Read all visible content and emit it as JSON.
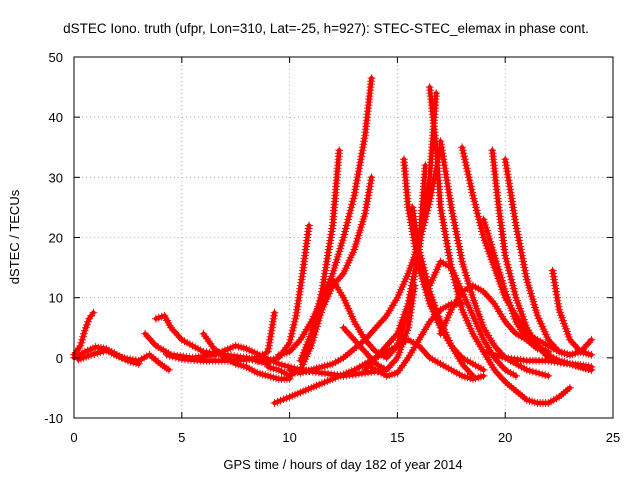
{
  "chart_data": {
    "type": "scatter",
    "title": "dSTEC Iono. truth (ufpr, Lon=310, Lat=-25, h=927): STEC-STEC_elemax in phase cont.",
    "xlabel": "GPS time / hours of day 182 of year 2014",
    "ylabel": "dSTEC  / TECUs",
    "xlim": [
      0,
      25
    ],
    "ylim": [
      -10,
      50
    ],
    "xticks": [
      0,
      5,
      10,
      15,
      20,
      25
    ],
    "yticks": [
      -10,
      0,
      10,
      20,
      30,
      40,
      50
    ],
    "grid": true,
    "marker": "+",
    "color": "#ff0000",
    "series": [
      {
        "x": [
          0.0,
          0.3,
          0.5,
          0.7,
          0.9
        ],
        "y": [
          0.5,
          2.0,
          4.5,
          6.5,
          7.5
        ]
      },
      {
        "x": [
          0.0,
          0.5,
          1.0,
          1.5,
          2.0,
          2.5,
          3.0
        ],
        "y": [
          0.0,
          1.0,
          1.8,
          1.5,
          0.5,
          -0.5,
          -1.0
        ]
      },
      {
        "x": [
          0.2,
          0.8,
          1.5,
          2.2,
          3.0,
          3.5,
          4.0,
          4.4
        ],
        "y": [
          -0.3,
          0.5,
          1.2,
          0.0,
          -0.5,
          0.5,
          -1.0,
          -2.0
        ]
      },
      {
        "x": [
          3.8,
          4.2,
          4.5,
          5.0,
          6.0,
          7.0,
          8.0,
          9.0
        ],
        "y": [
          6.5,
          7.0,
          5.0,
          3.0,
          1.0,
          0.5,
          0.0,
          -1.0
        ]
      },
      {
        "x": [
          3.3,
          3.8,
          4.5,
          5.5,
          6.5,
          7.5,
          8.0,
          9.5,
          10.5,
          11.5,
          12.5,
          13.5,
          14.5
        ],
        "y": [
          4.0,
          2.0,
          0.5,
          0.0,
          0.5,
          2.0,
          1.5,
          -1.0,
          -2.0,
          -2.5,
          -3.0,
          -2.5,
          -2.0
        ]
      },
      {
        "x": [
          6.0,
          6.5,
          7.0,
          7.5,
          8.0,
          8.5,
          9.0,
          9.5,
          10.0
        ],
        "y": [
          4.0,
          1.5,
          0.0,
          -1.0,
          -1.5,
          -2.5,
          -3.0,
          -3.5,
          -3.5
        ]
      },
      {
        "x": [
          4.3,
          5.0,
          6.0,
          7.0,
          8.0,
          8.5,
          9.0,
          9.3
        ],
        "y": [
          0.5,
          -0.2,
          -0.5,
          -0.5,
          -0.3,
          0.0,
          1.0,
          7.5
        ]
      },
      {
        "x": [
          8.5,
          9.0,
          9.5,
          10.0,
          10.3,
          10.6,
          10.9
        ],
        "y": [
          -0.5,
          -0.5,
          0.0,
          2.5,
          7.0,
          14.0,
          22.0
        ]
      },
      {
        "x": [
          9.5,
          10.0,
          10.5,
          11.0,
          11.5,
          12.0,
          12.5,
          13.0,
          13.5,
          13.8
        ],
        "y": [
          0.5,
          1.0,
          3.0,
          6.0,
          9.5,
          14.0,
          20.0,
          27.0,
          37.0,
          46.5
        ]
      },
      {
        "x": [
          10.5,
          11.0,
          11.5,
          12.0,
          12.3
        ],
        "y": [
          -0.5,
          4.0,
          11.0,
          22.0,
          34.5
        ]
      },
      {
        "x": [
          9.0,
          9.5,
          10.0,
          10.5,
          11.0,
          11.5,
          12.0,
          12.5,
          13.0,
          13.5,
          13.8
        ],
        "y": [
          -1.5,
          -2.0,
          -3.0,
          -2.0,
          2.0,
          8.0,
          12.0,
          14.0,
          18.0,
          24.0,
          30.0
        ]
      },
      {
        "x": [
          9.3,
          10.0,
          11.0,
          12.0,
          13.0,
          14.0,
          15.0,
          15.5,
          16.0,
          16.5,
          16.8
        ],
        "y": [
          -7.5,
          -6.5,
          -5.0,
          -3.5,
          -2.0,
          0.0,
          4.0,
          9.0,
          18.0,
          30.0,
          44.0
        ]
      },
      {
        "x": [
          10.0,
          10.5,
          11.0,
          11.5,
          12.0,
          12.5,
          13.0,
          13.5,
          14.0,
          14.5,
          15.0,
          15.5,
          16.0,
          16.5,
          17.0
        ],
        "y": [
          -2.0,
          -2.5,
          -2.0,
          -1.5,
          -1.0,
          0.0,
          1.5,
          3.0,
          5.0,
          7.0,
          10.0,
          14.0,
          19.0,
          26.0,
          35.0
        ]
      },
      {
        "x": [
          12.0,
          12.5,
          13.0,
          13.5,
          14.0,
          14.5,
          15.0,
          15.5,
          16.0,
          16.3
        ],
        "y": [
          13.0,
          10.0,
          6.0,
          3.0,
          1.0,
          0.0,
          2.0,
          8.0,
          18.0,
          32.0
        ]
      },
      {
        "x": [
          12.5,
          13.0,
          13.5,
          14.0,
          14.5,
          15.0,
          15.5,
          15.8
        ],
        "y": [
          5.0,
          3.0,
          1.0,
          -1.0,
          -2.0,
          0.0,
          5.0,
          12.0
        ]
      },
      {
        "x": [
          15.3,
          15.5,
          16.0,
          16.5,
          17.0,
          17.5,
          18.0,
          18.5,
          19.0
        ],
        "y": [
          33.0,
          25.0,
          15.0,
          9.0,
          5.0,
          2.0,
          0.0,
          -1.0,
          -2.0
        ]
      },
      {
        "x": [
          15.7,
          16.0,
          16.5,
          17.0,
          17.5,
          18.0,
          18.5
        ],
        "y": [
          25.0,
          18.0,
          11.0,
          6.0,
          2.0,
          -1.0,
          -3.0
        ]
      },
      {
        "x": [
          16.5,
          16.8,
          17.0,
          17.5,
          18.0,
          18.5,
          19.0,
          19.5,
          20.0,
          20.5,
          21.0,
          21.5,
          22.0,
          22.5,
          23.0
        ],
        "y": [
          45.0,
          35.0,
          25.0,
          15.0,
          8.0,
          4.0,
          1.0,
          -2.0,
          -4.0,
          -5.5,
          -7.0,
          -7.5,
          -7.5,
          -6.5,
          -5.0
        ]
      },
      {
        "x": [
          17.0,
          17.5,
          18.0,
          18.5,
          19.0,
          19.5,
          20.0,
          20.5,
          21.0,
          22.0
        ],
        "y": [
          36.0,
          25.0,
          16.0,
          10.0,
          5.0,
          2.0,
          0.0,
          -1.0,
          -2.0,
          -3.0
        ]
      },
      {
        "x": [
          16.5,
          17.0,
          17.5,
          18.0,
          18.5,
          19.0,
          19.5,
          20.0,
          20.5
        ],
        "y": [
          12.0,
          16.0,
          15.0,
          11.0,
          7.0,
          3.0,
          0.0,
          -2.0,
          -3.0
        ]
      },
      {
        "x": [
          17.0,
          17.5,
          18.0,
          18.5,
          19.0,
          19.5,
          20.0,
          20.5,
          21.0,
          21.5,
          22.0
        ],
        "y": [
          4.0,
          8.0,
          11.0,
          12.0,
          11.0,
          9.0,
          6.0,
          4.0,
          3.0,
          2.0,
          1.0
        ]
      },
      {
        "x": [
          18.0,
          18.5,
          19.0,
          19.5,
          20.0,
          20.5,
          21.0,
          21.5,
          22.0,
          22.5,
          23.0,
          23.5,
          24.0
        ],
        "y": [
          35.0,
          27.0,
          20.0,
          15.0,
          10.0,
          7.0,
          4.0,
          2.0,
          0.5,
          -0.5,
          -1.0,
          -1.5,
          -2.0
        ]
      },
      {
        "x": [
          19.4,
          19.7,
          20.0,
          20.5,
          21.0,
          21.5,
          22.0,
          22.5,
          23.0,
          23.5,
          24.0
        ],
        "y": [
          34.5,
          25.0,
          17.0,
          10.0,
          5.0,
          2.0,
          0.0,
          -0.5,
          -1.0,
          -1.2,
          -1.5
        ]
      },
      {
        "x": [
          20.0,
          20.5,
          21.0,
          21.5,
          22.0,
          22.5,
          23.0,
          23.5,
          24.0
        ],
        "y": [
          33.0,
          22.0,
          13.0,
          7.0,
          3.0,
          1.0,
          0.5,
          1.0,
          3.0
        ]
      },
      {
        "x": [
          19.0,
          19.5,
          20.0,
          20.5,
          21.0,
          21.5,
          22.0
        ],
        "y": [
          23.0,
          17.0,
          11.0,
          6.0,
          3.0,
          1.5,
          1.0
        ]
      },
      {
        "x": [
          21.0,
          21.5,
          22.0,
          22.5,
          23.0
        ],
        "y": [
          4.0,
          3.0,
          2.0,
          1.0,
          0.5
        ]
      },
      {
        "x": [
          22.2,
          22.5,
          23.0,
          23.5,
          24.0
        ],
        "y": [
          14.5,
          8.0,
          3.0,
          1.0,
          0.5
        ]
      },
      {
        "x": [
          19.0,
          20.0,
          21.0,
          22.0,
          23.0,
          24.0
        ],
        "y": [
          1.0,
          0.0,
          -0.5,
          -0.5,
          -1.0,
          -2.0
        ]
      },
      {
        "x": [
          13.5,
          14.0,
          14.5,
          15.0,
          15.5,
          16.0,
          16.5,
          17.0,
          17.5,
          18.0,
          18.5,
          19.0
        ],
        "y": [
          -2.0,
          0.0,
          1.0,
          2.0,
          3.0,
          2.0,
          0.0,
          -1.0,
          -2.0,
          -3.0,
          -3.5,
          -3.0
        ]
      },
      {
        "x": [
          13.5,
          14.0,
          14.5,
          15.0,
          15.5,
          16.0,
          16.5,
          17.0,
          17.5,
          18.0
        ],
        "y": [
          -1.0,
          -2.0,
          -3.0,
          -2.5,
          0.0,
          3.0,
          6.0,
          8.0,
          9.0,
          9.0
        ]
      }
    ]
  }
}
